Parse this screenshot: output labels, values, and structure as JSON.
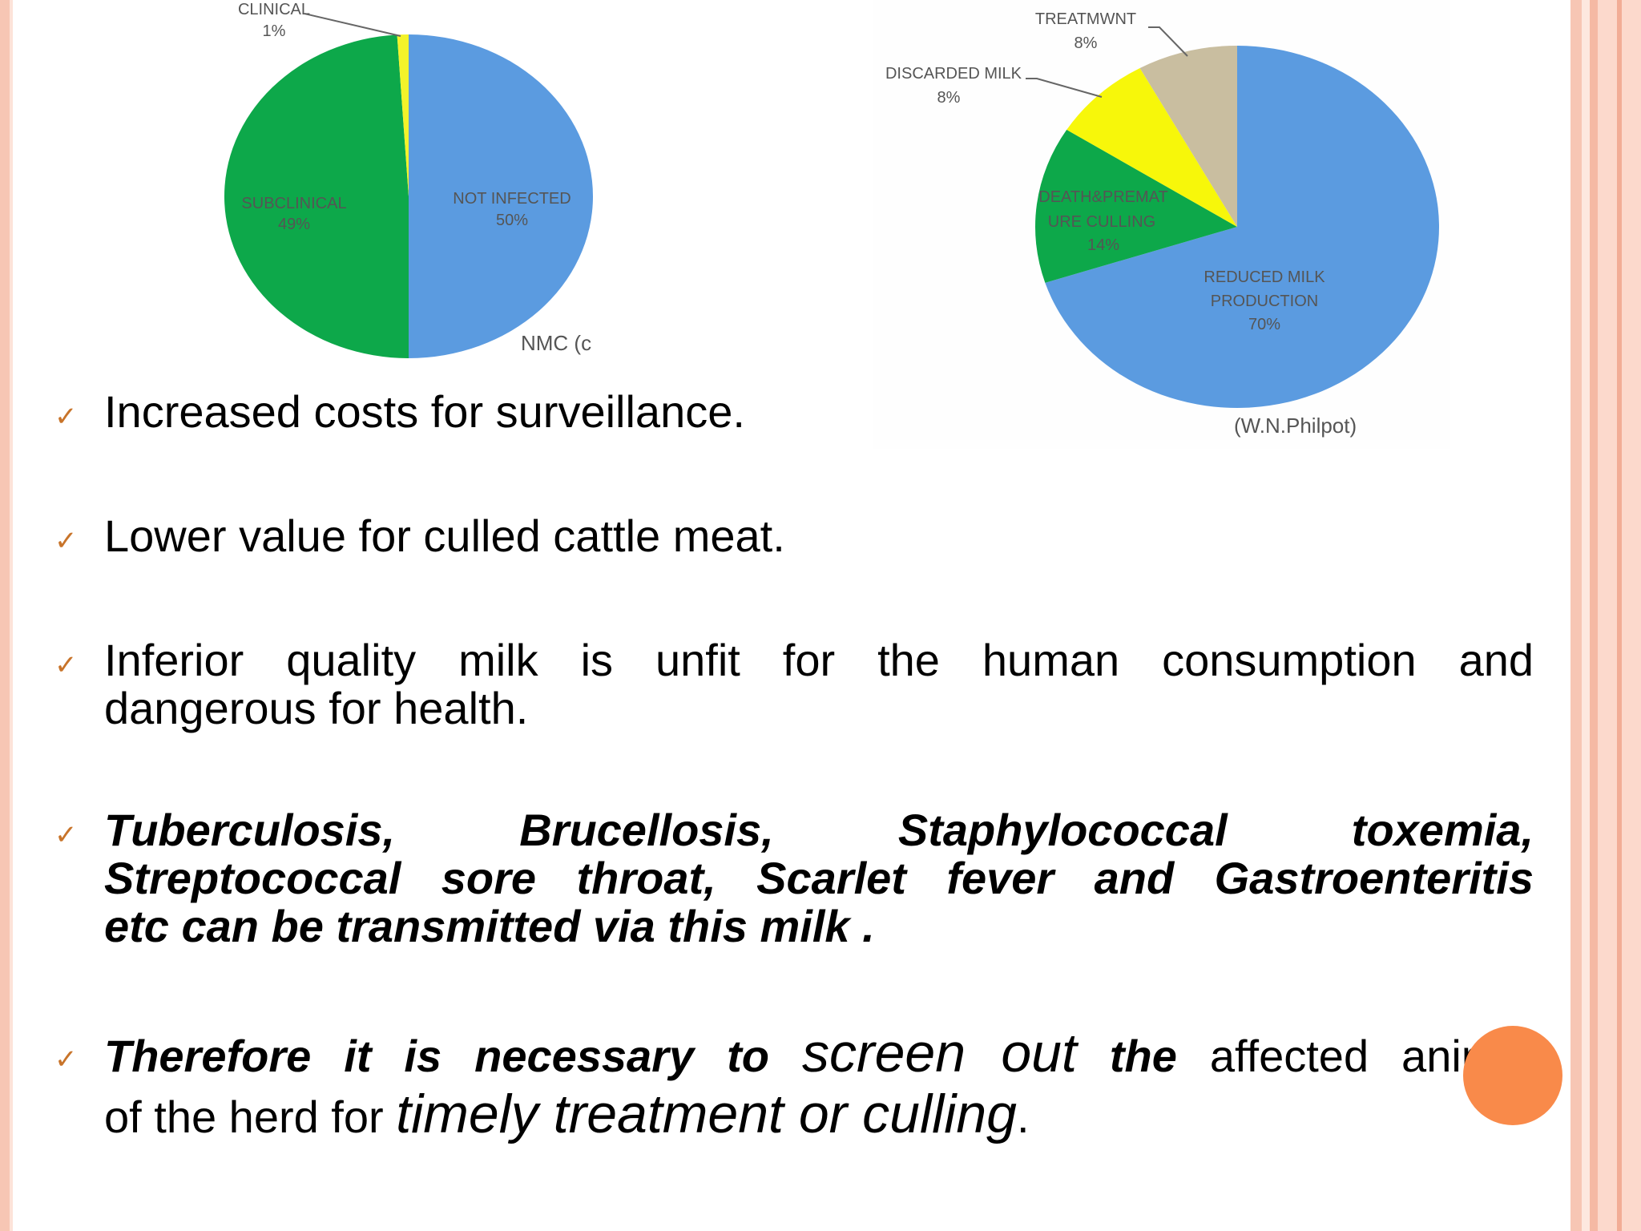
{
  "chart_data": [
    {
      "type": "pie",
      "slices": [
        {
          "label": "NOT INFECTED",
          "value": 50,
          "pct_text": "50%",
          "color": "#5b9be0"
        },
        {
          "label": "SUBCLINICAL",
          "value": 49,
          "pct_text": "49%",
          "color": "#0da84a"
        },
        {
          "label": "CLINICAL",
          "value": 1,
          "pct_text": "1%",
          "color": "#f3f32a"
        }
      ],
      "source": "NMC (c"
    },
    {
      "type": "pie",
      "slices": [
        {
          "label": "REDUCED MILK PRODUCTION",
          "value": 70,
          "pct_text": "70%",
          "color": "#5b9be0"
        },
        {
          "label": "DEATH&PREMATURE CULLING",
          "value": 14,
          "pct_text": "14%",
          "color": "#0da84a"
        },
        {
          "label": "DISCARDED MILK",
          "value": 8,
          "pct_text": "8%",
          "color": "#f7f70a"
        },
        {
          "label": "TREATMWNT",
          "value": 8,
          "pct_text": "8%",
          "color": "#c9bea0"
        }
      ],
      "source": "(W.N.Philpot)"
    }
  ],
  "chart1": {
    "label_clinical": "CLINICAL",
    "pct_clinical": "1%",
    "label_subclinical": "SUBCLINICAL",
    "pct_subclinical": "49%",
    "label_notinfected": "NOT INFECTED",
    "pct_notinfected": "50%",
    "source": "NMC (c"
  },
  "chart2": {
    "label_treatment": "TREATMWNT",
    "pct_treatment": "8%",
    "label_discarded": "DISCARDED MILK",
    "pct_discarded": "8%",
    "label_death_1": "DEATH&PREMAT",
    "label_death_2": "URE CULLING",
    "pct_death": "14%",
    "label_reduced_1": "REDUCED MILK",
    "label_reduced_2": "PRODUCTION",
    "pct_reduced": "70%",
    "source": "(W.N.Philpot)"
  },
  "bullet_glyph": "✓",
  "bullets": {
    "b1": "Increased costs for surveillance.",
    "b2": "Lower value for culled cattle meat.",
    "b3_line1": "Inferior quality milk is unfit for the human consumption and",
    "b3_line2": "dangerous for health.",
    "b4_line1": "Tuberculosis, Brucellosis, Staphylococcal toxemia,",
    "b4_line2": "Streptococcal sore throat, Scarlet fever and Gastroenteritis",
    "b4_line3": "etc can be transmitted via this milk .",
    "b5_part1": "Therefore it is necessary to",
    "b5_part2": "screen out",
    "b5_part3": "the",
    "b5_part4": "affected animal",
    "b5_part5": "of the herd for",
    "b5_part6": "timely treatment or culling",
    "b5_part7": "."
  },
  "colors": {
    "accent_border": "#f7c6b4",
    "bullet_check": "#c8742a",
    "orange_circle": "#f98a4a"
  }
}
